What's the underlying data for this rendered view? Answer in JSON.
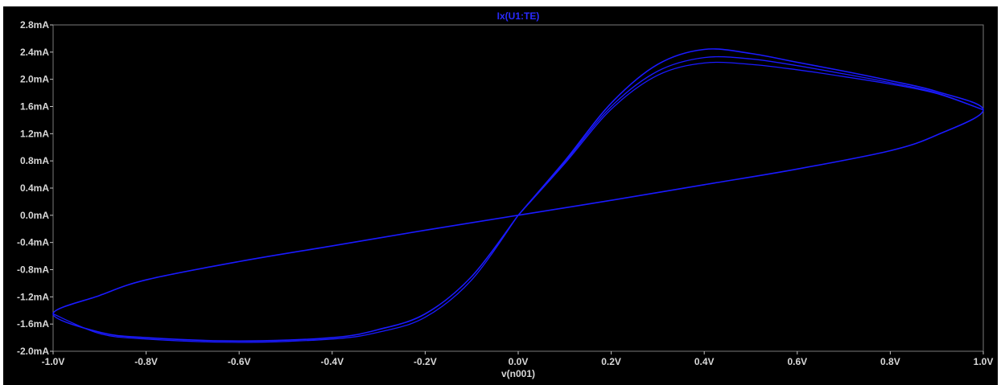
{
  "chart_data": {
    "type": "line",
    "title": "Ix(U1:TE)",
    "xlabel": "v(n001)",
    "ylabel": "",
    "xlim": [
      -1.0,
      1.0
    ],
    "ylim": [
      -2.0,
      2.8
    ],
    "x_ticks": [
      "-1.0V",
      "-0.8V",
      "-0.6V",
      "-0.4V",
      "-0.2V",
      "0.0V",
      "0.2V",
      "0.4V",
      "0.6V",
      "0.8V",
      "1.0V"
    ],
    "y_ticks": [
      "-2.0mA",
      "-1.6mA",
      "-1.2mA",
      "-0.8mA",
      "-0.4mA",
      "0.0mA",
      "0.4mA",
      "0.8mA",
      "1.2mA",
      "1.6mA",
      "2.0mA",
      "2.4mA",
      "2.8mA"
    ],
    "grid": false,
    "background": "#000000",
    "trace_color": "#1a1aff",
    "series": [
      {
        "name": "Ix(U1:TE)",
        "x": [
          0.0,
          0.1,
          0.2,
          0.3,
          0.4,
          0.5,
          0.6,
          0.7,
          0.8,
          0.9,
          1.0,
          0.9,
          0.8,
          0.6,
          0.4,
          0.2,
          0.0,
          -0.2,
          -0.4,
          -0.6,
          -0.8,
          -0.9,
          -1.0,
          -0.9,
          -0.8,
          -0.6,
          -0.4,
          -0.3,
          -0.2,
          -0.1,
          0.0
        ],
        "y": [
          0.0,
          0.8,
          1.65,
          2.22,
          2.44,
          2.38,
          2.25,
          2.12,
          1.98,
          1.82,
          1.55,
          1.18,
          0.95,
          0.68,
          0.45,
          0.22,
          0.0,
          -0.22,
          -0.45,
          -0.68,
          -0.95,
          -1.18,
          -1.45,
          -1.72,
          -1.8,
          -1.85,
          -1.8,
          -1.68,
          -1.45,
          -0.9,
          0.0
        ]
      },
      {
        "name": "Ix(U1:TE)",
        "x": [
          0.0,
          0.1,
          0.2,
          0.3,
          0.4,
          0.5,
          0.6,
          0.7,
          0.8,
          0.9,
          1.0
        ],
        "y": [
          0.0,
          0.78,
          1.6,
          2.12,
          2.32,
          2.3,
          2.2,
          2.08,
          1.95,
          1.8,
          1.55
        ]
      },
      {
        "name": "Ix(U1:TE)",
        "x": [
          0.0,
          0.1,
          0.2,
          0.3,
          0.4,
          0.5,
          0.6,
          0.7,
          0.8,
          0.9,
          1.0
        ],
        "y": [
          0.0,
          0.76,
          1.56,
          2.06,
          2.24,
          2.22,
          2.14,
          2.04,
          1.93,
          1.79,
          1.55
        ]
      },
      {
        "name": "Ix(U1:TE)",
        "x": [
          -1.0,
          -0.9,
          -0.8,
          -0.6,
          -0.4,
          -0.3,
          -0.2,
          -0.1,
          0.0
        ],
        "y": [
          -1.45,
          -1.74,
          -1.82,
          -1.87,
          -1.82,
          -1.72,
          -1.5,
          -0.95,
          0.0
        ]
      }
    ]
  }
}
